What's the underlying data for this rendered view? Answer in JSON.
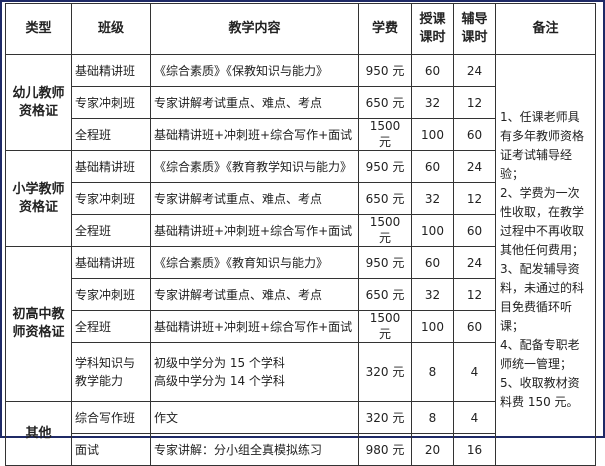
{
  "headers": [
    "类型",
    "班级",
    "教学内容",
    "学费",
    "授课\n课时",
    "辅导\n课时",
    "备注"
  ],
  "groups": [
    {
      "type": "幼儿教师资格证",
      "rows": [
        {
          "class": "基础精讲班",
          "content": "《综合素质》《保教知识与能力》",
          "fee": "950 元",
          "lecture": "60",
          "tutor": "24"
        },
        {
          "class": "专家冲刺班",
          "content": "专家讲解考试重点、难点、考点",
          "fee": "650 元",
          "lecture": "32",
          "tutor": "12"
        },
        {
          "class": "全程班",
          "content": "基础精讲班+冲刺班+综合写作+面试",
          "fee": "1500 元",
          "lecture": "100",
          "tutor": "60"
        }
      ]
    },
    {
      "type": "小学教师资格证",
      "rows": [
        {
          "class": "基础精讲班",
          "content": "《综合素质》《教育教学知识与能力》",
          "fee": "950 元",
          "lecture": "60",
          "tutor": "24"
        },
        {
          "class": "专家冲刺班",
          "content": "专家讲解考试重点、难点、考点",
          "fee": "650 元",
          "lecture": "32",
          "tutor": "12"
        },
        {
          "class": "全程班",
          "content": "基础精讲班+冲刺班+综合写作+面试",
          "fee": "1500 元",
          "lecture": "100",
          "tutor": "60"
        }
      ]
    },
    {
      "type": "初高中教师资格证",
      "rows": [
        {
          "class": "基础精讲班",
          "content": "《综合素质》《教育知识与能力》",
          "fee": "950 元",
          "lecture": "60",
          "tutor": "24"
        },
        {
          "class": "专家冲刺班",
          "content": "专家讲解考试重点、难点、考点",
          "fee": "650 元",
          "lecture": "32",
          "tutor": "12"
        },
        {
          "class": "全程班",
          "content": "基础精讲班+冲刺班+综合写作+面试",
          "fee": "1500 元",
          "lecture": "100",
          "tutor": "60"
        },
        {
          "class": "学科知识与\n教学能力",
          "content": "初级中学分为 15 个学科\n高级中学分为 14 个学科",
          "fee": "320 元",
          "lecture": "8",
          "tutor": "4"
        }
      ]
    },
    {
      "type": "其他",
      "rows": [
        {
          "class": "综合写作班",
          "content": "作文",
          "fee": "320 元",
          "lecture": "8",
          "tutor": "4"
        },
        {
          "class": "面试",
          "content": "专家讲解：分小组全真模拟练习",
          "fee": "980 元",
          "lecture": "20",
          "tutor": "16"
        }
      ]
    }
  ],
  "notes": "1、任课老师具有多年教师资格证考试辅导经验；\n2、学费为一次性收取，在教学过程中不再收取其他任何费用；\n3、配发辅导资料，未通过的科目免费循环听课；\n4、配备专职老师统一管理；\n5、收取教材资料费 150 元。",
  "colors": {
    "frame": "#1f2a66",
    "grid": "#333333"
  }
}
